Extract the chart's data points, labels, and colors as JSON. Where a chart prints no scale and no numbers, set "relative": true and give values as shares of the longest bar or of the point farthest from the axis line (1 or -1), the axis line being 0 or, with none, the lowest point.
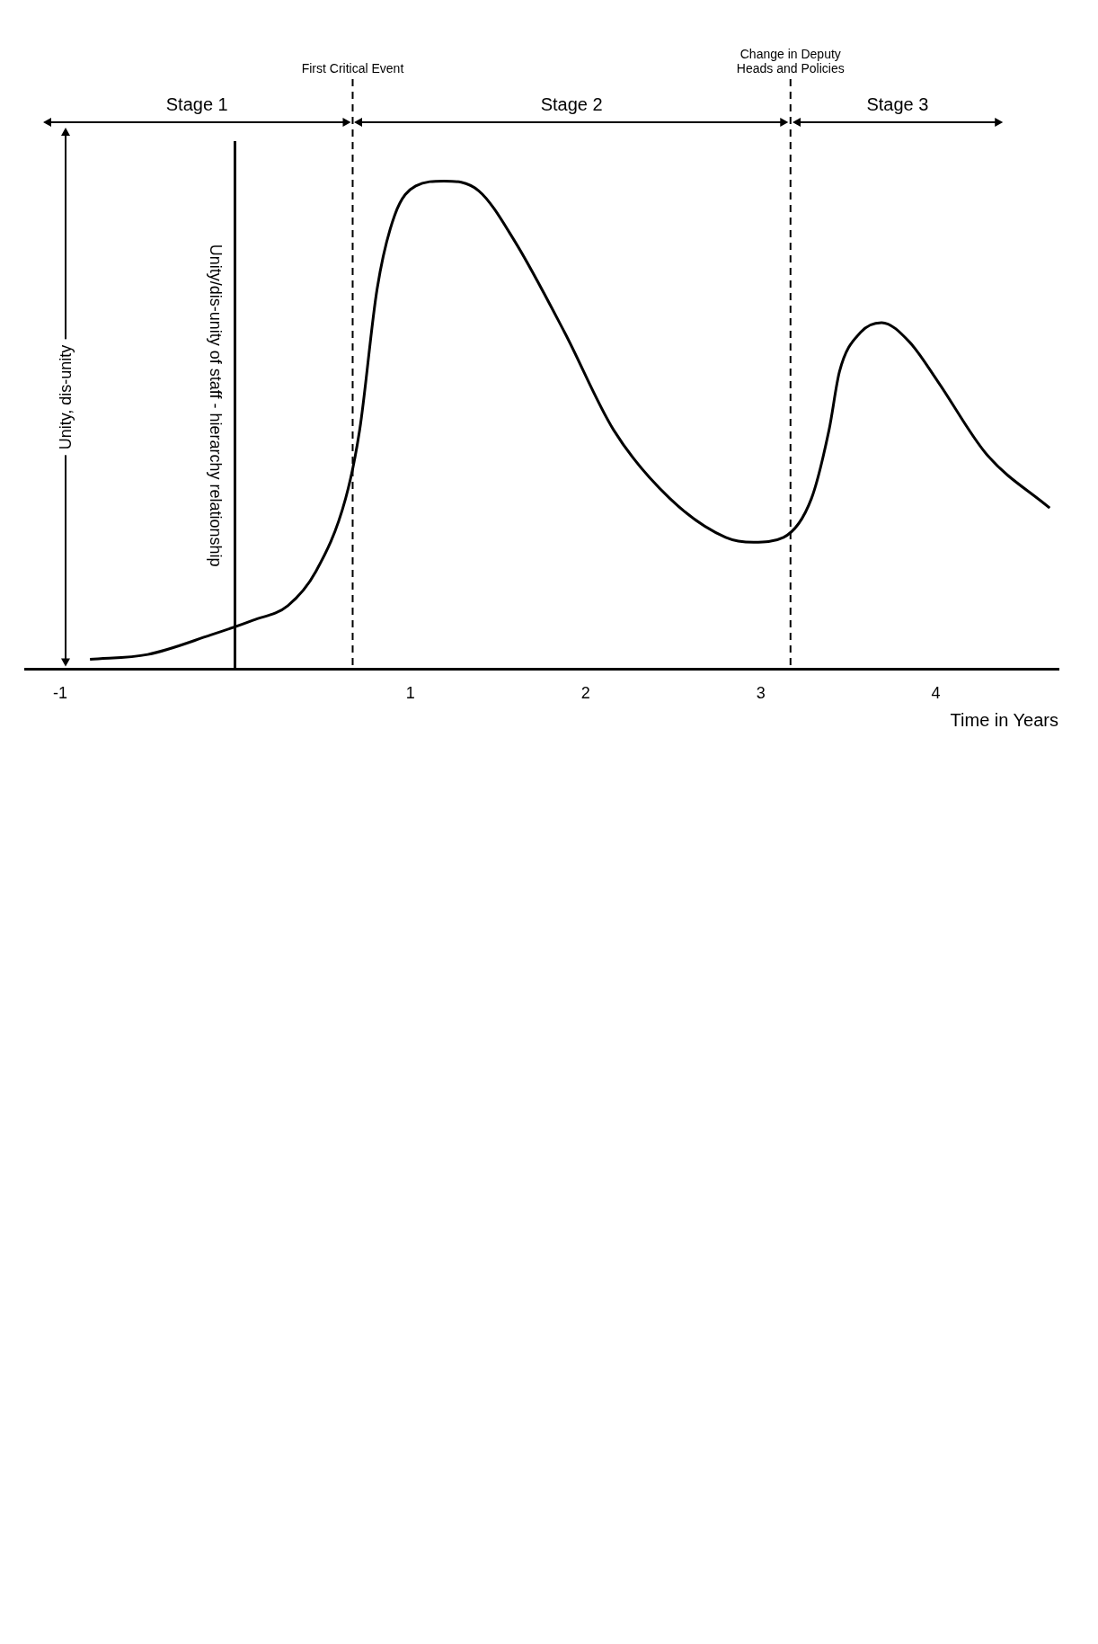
{
  "chart_data": {
    "type": "line",
    "relative": true,
    "xlabel": "Time in Years",
    "ylabel": "Unity/dis-unity of staff - hierarchy relationship",
    "color": "#000000",
    "marker": "none",
    "line_style": "solid",
    "grid": false,
    "legend": false,
    "x": [
      -0.83,
      -0.5,
      -0.14,
      0.1,
      0.3,
      0.46,
      0.63,
      0.71,
      0.81,
      0.91,
      1.03,
      1.19,
      1.39,
      1.59,
      1.88,
      2.16,
      2.48,
      2.8,
      2.96,
      3.13,
      3.29,
      3.39,
      3.45,
      3.57,
      3.69,
      3.85,
      4.01,
      4.29,
      4.65
    ],
    "values": [
      0.02,
      0.03,
      0.07,
      0.1,
      0.13,
      0.2,
      0.35,
      0.49,
      0.78,
      0.93,
      0.99,
      1,
      0.98,
      0.88,
      0.69,
      0.49,
      0.35,
      0.27,
      0.26,
      0.27,
      0.35,
      0.49,
      0.61,
      0.69,
      0.71,
      0.67,
      0.59,
      0.44,
      0.33
    ],
    "xlim": [
      -1.2,
      4.7
    ],
    "xticks": [
      -1,
      1,
      2,
      3,
      4
    ],
    "tick_labels": "x",
    "ref_lines": [
      {
        "axis": "x",
        "value": 0.67,
        "label": "First Critical Event",
        "line_style": "dashed"
      },
      {
        "axis": "x",
        "value": 3.17,
        "label": "Change in Deputy Heads and Policies",
        "line_style": "dashed"
      }
    ],
    "annotations": [
      "Stage 1",
      "Stage 2",
      "Stage 3",
      "Unity, dis-unity"
    ]
  }
}
